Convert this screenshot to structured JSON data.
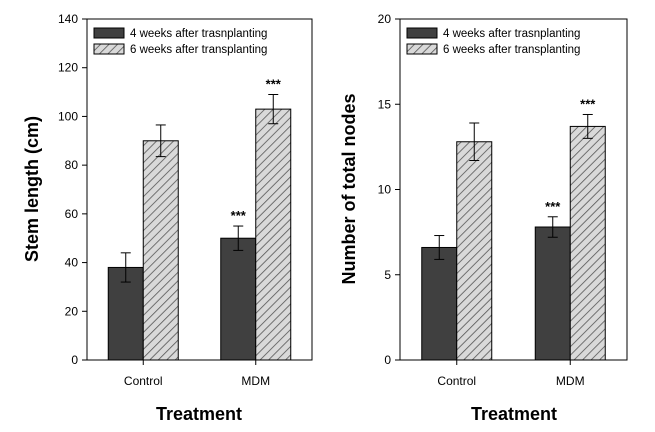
{
  "chart_data": [
    {
      "type": "bar",
      "categories": [
        "Control",
        "MDM"
      ],
      "xlabel": "Treatment",
      "ylabel": "Stem length (cm)",
      "ylim": [
        0,
        140
      ],
      "yticks": [
        0,
        20,
        40,
        60,
        80,
        100,
        120,
        140
      ],
      "legend_position": "top-left",
      "series": [
        {
          "name": "4 weeks after trasnplanting",
          "values": [
            38,
            50
          ],
          "errors": [
            6,
            5
          ],
          "significance": [
            "",
            "***"
          ],
          "color": "#404040",
          "pattern": "solid"
        },
        {
          "name": "6 weeks after transplanting",
          "values": [
            90,
            103
          ],
          "errors": [
            6.5,
            6
          ],
          "significance": [
            "",
            "***"
          ],
          "color": "#d9d9d9",
          "pattern": "hatched"
        }
      ]
    },
    {
      "type": "bar",
      "categories": [
        "Control",
        "MDM"
      ],
      "xlabel": "Treatment",
      "ylabel": "Number of total nodes",
      "ylim": [
        0,
        20
      ],
      "yticks": [
        0,
        5,
        10,
        15,
        20
      ],
      "legend_position": "top-left",
      "series": [
        {
          "name": "4 weeks after trasnplanting",
          "values": [
            6.6,
            7.8
          ],
          "errors": [
            0.7,
            0.6
          ],
          "significance": [
            "",
            "***"
          ],
          "color": "#404040",
          "pattern": "solid"
        },
        {
          "name": "6 weeks after transplanting",
          "values": [
            12.8,
            13.7
          ],
          "errors": [
            1.1,
            0.7
          ],
          "significance": [
            "",
            "***"
          ],
          "color": "#d9d9d9",
          "pattern": "hatched"
        }
      ]
    }
  ]
}
